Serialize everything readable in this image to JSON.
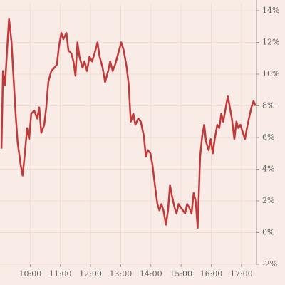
{
  "chart_data": {
    "type": "line",
    "color": "#c2393a",
    "grid": true,
    "xlim": [
      "09:00",
      "17:30"
    ],
    "xticks": [
      "10:00",
      "11:00",
      "12:00",
      "13:00",
      "14:00",
      "15:00",
      "16:00",
      "17:00"
    ],
    "ylim": [
      -2,
      14
    ],
    "yticks": [
      {
        "value": -2,
        "label": "-2%"
      },
      {
        "value": 0,
        "label": "0%"
      },
      {
        "value": 2,
        "label": "2%"
      },
      {
        "value": 4,
        "label": "4%"
      },
      {
        "value": 6,
        "label": "6%"
      },
      {
        "value": 8,
        "label": "8%"
      },
      {
        "value": 10,
        "label": "10%"
      },
      {
        "value": 12,
        "label": "12%"
      },
      {
        "value": 14,
        "label": "14%"
      }
    ],
    "x": [
      "09:03",
      "09:06",
      "09:10",
      "09:14",
      "09:18",
      "09:23",
      "09:27",
      "09:31",
      "09:35",
      "09:41",
      "09:45",
      "09:50",
      "09:54",
      "09:58",
      "10:02",
      "10:08",
      "10:14",
      "10:18",
      "10:22",
      "10:28",
      "10:32",
      "10:36",
      "10:42",
      "10:48",
      "10:53",
      "10:57",
      "11:02",
      "11:06",
      "11:12",
      "11:16",
      "11:22",
      "11:26",
      "11:30",
      "11:34",
      "11:38",
      "11:44",
      "11:48",
      "11:53",
      "11:58",
      "12:03",
      "12:08",
      "12:14",
      "12:18",
      "12:24",
      "12:29",
      "12:35",
      "12:39",
      "12:44",
      "12:49",
      "12:55",
      "13:01",
      "13:06",
      "13:12",
      "13:16",
      "13:20",
      "13:25",
      "13:29",
      "13:35",
      "13:40",
      "13:46",
      "13:50",
      "13:54",
      "13:59",
      "14:03",
      "14:08",
      "14:13",
      "14:17",
      "14:21",
      "14:25",
      "14:30",
      "14:34",
      "14:38",
      "14:42",
      "14:47",
      "14:51",
      "14:55",
      "14:59",
      "15:04",
      "15:08",
      "15:12",
      "15:16",
      "15:21",
      "15:25",
      "15:29",
      "15:33",
      "15:38",
      "15:42",
      "15:46",
      "15:50",
      "15:55",
      "15:59",
      "16:03",
      "16:07",
      "16:12",
      "16:16",
      "16:20",
      "16:24",
      "16:29",
      "16:33",
      "16:37",
      "16:41",
      "16:46",
      "16:50",
      "16:54",
      "16:58",
      "17:03",
      "17:07",
      "17:11",
      "17:15",
      "17:20",
      "17:24",
      "17:28"
    ],
    "values": [
      5.3,
      10.2,
      9.3,
      11.5,
      13.5,
      12,
      9.7,
      7.5,
      5.7,
      4.3,
      3.6,
      5.2,
      6.6,
      5.9,
      7.5,
      7.7,
      7.2,
      7.9,
      6.3,
      6.8,
      7.9,
      9.5,
      10.2,
      10.4,
      10.6,
      11.7,
      12.6,
      12.2,
      12.6,
      11.5,
      11.3,
      10.8,
      9.9,
      12,
      11.1,
      10.4,
      10.8,
      10.2,
      11.1,
      10.8,
      11.3,
      12,
      11.1,
      10.4,
      9.5,
      10.2,
      10.8,
      10.2,
      10.6,
      11.3,
      12,
      11.5,
      10.4,
      9.3,
      7,
      7.5,
      6.8,
      7.2,
      7,
      6.1,
      4.8,
      5.2,
      5,
      4.3,
      3,
      1.8,
      1.4,
      1.8,
      1.4,
      0.5,
      1.4,
      3,
      2.3,
      1.6,
      1.2,
      1.8,
      1.6,
      1.4,
      1.2,
      1.8,
      1.6,
      1.2,
      2.5,
      2,
      0.3,
      4.8,
      6.1,
      6.8,
      5.7,
      5.2,
      5.9,
      5,
      5.9,
      6.8,
      6.6,
      7.5,
      7,
      7.9,
      8.6,
      7.9,
      7.2,
      5.9,
      7,
      6.6,
      6.8,
      6.3,
      5.9,
      6.6,
      7.2,
      7.9,
      8.3,
      8
    ]
  }
}
